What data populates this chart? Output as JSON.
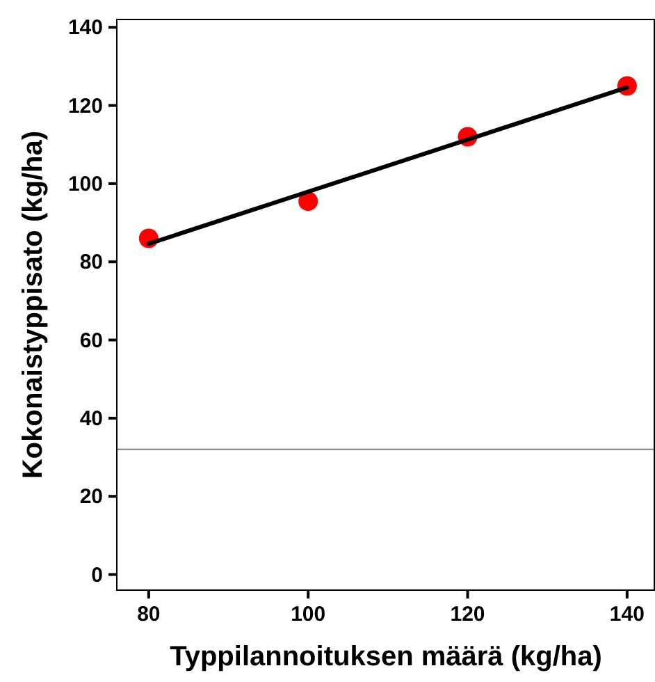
{
  "chart_data": {
    "type": "scatter",
    "xlabel": "Typpilannoituksen määrä (kg/ha)",
    "ylabel": "Kokonaistyppisato (kg/ha)",
    "xlim": [
      76,
      143.5
    ],
    "ylim": [
      -4,
      142
    ],
    "xticks": [
      80,
      100,
      120,
      140
    ],
    "yticks": [
      0,
      20,
      40,
      60,
      80,
      100,
      120,
      140
    ],
    "grid": false,
    "marker": "circle",
    "series": [
      {
        "color": "#ff0000",
        "x": [
          80,
          100,
          120,
          140
        ],
        "values": [
          86,
          95.5,
          112,
          125
        ]
      },
      {
        "type": "line",
        "color": "#000000",
        "x": [
          80,
          140
        ],
        "values": [
          84.6,
          124.6
        ],
        "marker": "none"
      }
    ],
    "ref_lines": [
      {
        "axis": "y",
        "value": 32,
        "color": "#808080"
      }
    ]
  }
}
